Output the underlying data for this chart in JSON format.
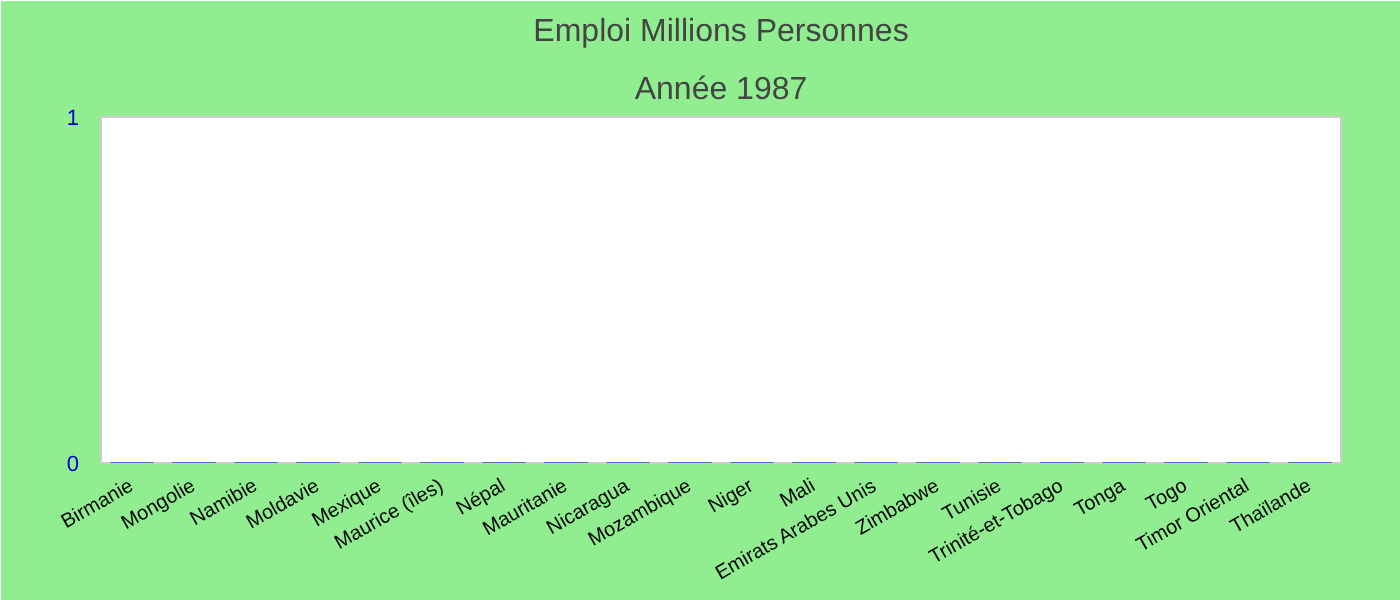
{
  "chart_data": {
    "type": "bar",
    "title": "Emploi Millions Personnes",
    "subtitle": "Année 1987",
    "categories": [
      "Birmanie",
      "Mongolie",
      "Namibie",
      "Moldavie",
      "Mexique",
      "Maurice (îles)",
      "Népal",
      "Mauritanie",
      "Nicaragua",
      "Mozambique",
      "Niger",
      "Mali",
      "Emirats Arabes Unis",
      "Zimbabwe",
      "Tunisie",
      "Trinité-et-Tobago",
      "Tonga",
      "Togo",
      "Timor Oriental",
      "Thaïlande"
    ],
    "values": [
      0,
      0,
      0,
      0,
      0,
      0,
      0,
      0,
      0,
      0,
      0,
      0,
      0,
      0,
      0,
      0,
      0,
      0,
      0,
      0
    ],
    "color": "#4472c4",
    "ylim": [
      0,
      1
    ],
    "yticks": [
      0,
      1
    ],
    "grid": false
  }
}
